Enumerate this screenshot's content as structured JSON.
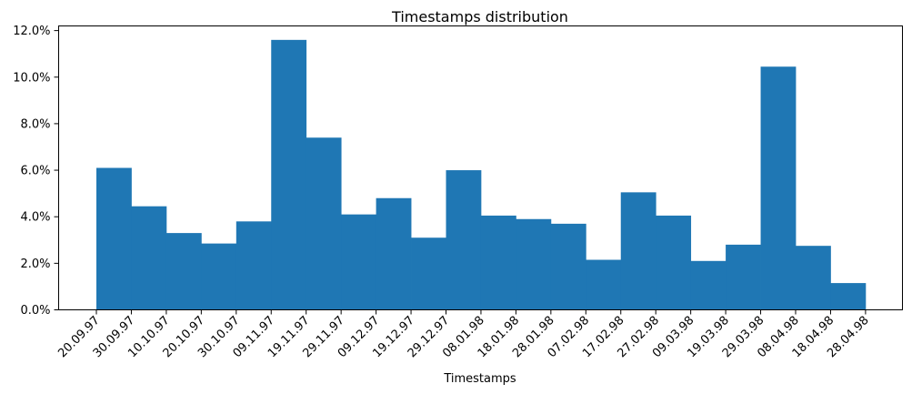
{
  "chart_data": {
    "type": "bar",
    "title": "Timestamps distribution",
    "xlabel": "Timestamps",
    "ylabel": "",
    "bar_color": "#1f77b4",
    "ylim": [
      0,
      12.2
    ],
    "y_ticks": [
      "0.0%",
      "2.0%",
      "4.0%",
      "6.0%",
      "8.0%",
      "10.0%",
      "12.0%"
    ],
    "y_tick_values": [
      0,
      2,
      4,
      6,
      8,
      10,
      12
    ],
    "x_ticks": [
      "20.09.97",
      "30.09.97",
      "10.10.97",
      "20.10.97",
      "30.10.97",
      "09.11.97",
      "19.11.97",
      "29.11.97",
      "09.12.97",
      "19.12.97",
      "29.12.97",
      "08.01.98",
      "18.01.98",
      "28.01.98",
      "07.02.98",
      "17.02.98",
      "27.02.98",
      "09.03.98",
      "19.03.98",
      "29.03.98",
      "08.04.98",
      "18.04.98",
      "28.04.98"
    ],
    "bins": [
      "20.09.97–30.09.97",
      "30.09.97–10.10.97",
      "10.10.97–20.10.97",
      "20.10.97–30.10.97",
      "30.10.97–09.11.97",
      "09.11.97–19.11.97",
      "19.11.97–29.11.97",
      "29.11.97–09.12.97",
      "09.12.97–19.12.97",
      "19.12.97–29.12.97",
      "29.12.97–08.01.98",
      "08.01.98–18.01.98",
      "18.01.98–28.01.98",
      "28.01.98–07.02.98",
      "07.02.98–17.02.98",
      "17.02.98–27.02.98",
      "27.02.98–09.03.98",
      "09.03.98–19.03.98",
      "19.03.98–29.03.98",
      "29.03.98–08.04.98",
      "08.04.98–18.04.98",
      "18.04.98–28.04.98"
    ],
    "values": [
      6.1,
      4.45,
      3.3,
      2.85,
      3.8,
      11.6,
      7.4,
      4.1,
      4.8,
      3.1,
      6.0,
      4.05,
      3.9,
      3.7,
      2.15,
      5.05,
      4.05,
      2.1,
      2.8,
      10.45,
      2.75,
      1.15
    ]
  }
}
